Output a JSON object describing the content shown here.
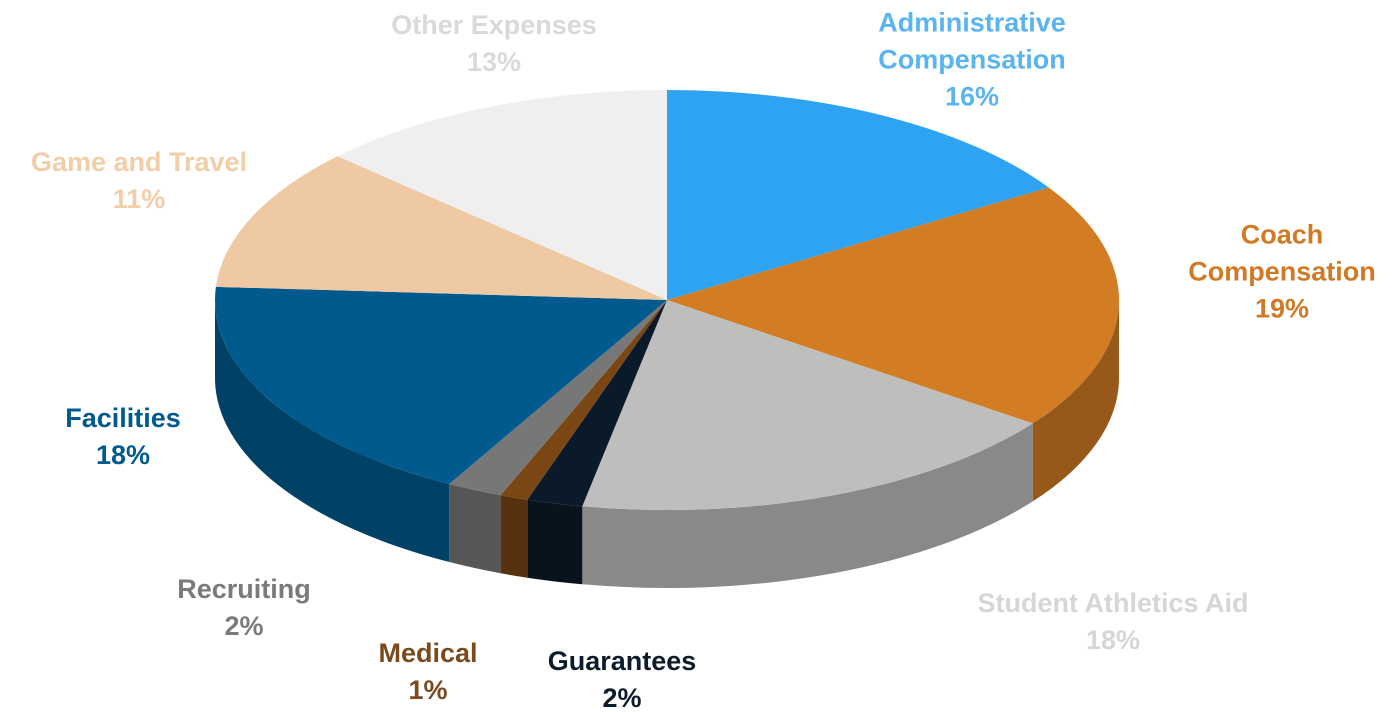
{
  "chart_data": {
    "type": "pie",
    "categories": [
      "Administrative Compensation",
      "Coach Compensation",
      "Student Athletics Aid",
      "Guarantees",
      "Medical",
      "Recruiting",
      "Facilities",
      "Game and Travel",
      "Other Expenses"
    ],
    "values": [
      16,
      19,
      18,
      2,
      1,
      2,
      18,
      11,
      13
    ],
    "value_labels": [
      "16%",
      "19%",
      "18%",
      "2%",
      "1%",
      "2%",
      "18%",
      "11%",
      "13%"
    ],
    "colors": [
      "#2ea3f2",
      "#d27c24",
      "#bebebc",
      "#0b1a2a",
      "#7a4614",
      "#777777",
      "#005a8e",
      "#efc9a3",
      "#efefef"
    ],
    "label_colors": [
      "#5ab4f0",
      "#d07a25",
      "#d6d6d6",
      "#0d1b2a",
      "#7a4a1d",
      "#7a7a7a",
      "#005a8e",
      "#f1cda8",
      "#d9d9d9"
    ]
  }
}
